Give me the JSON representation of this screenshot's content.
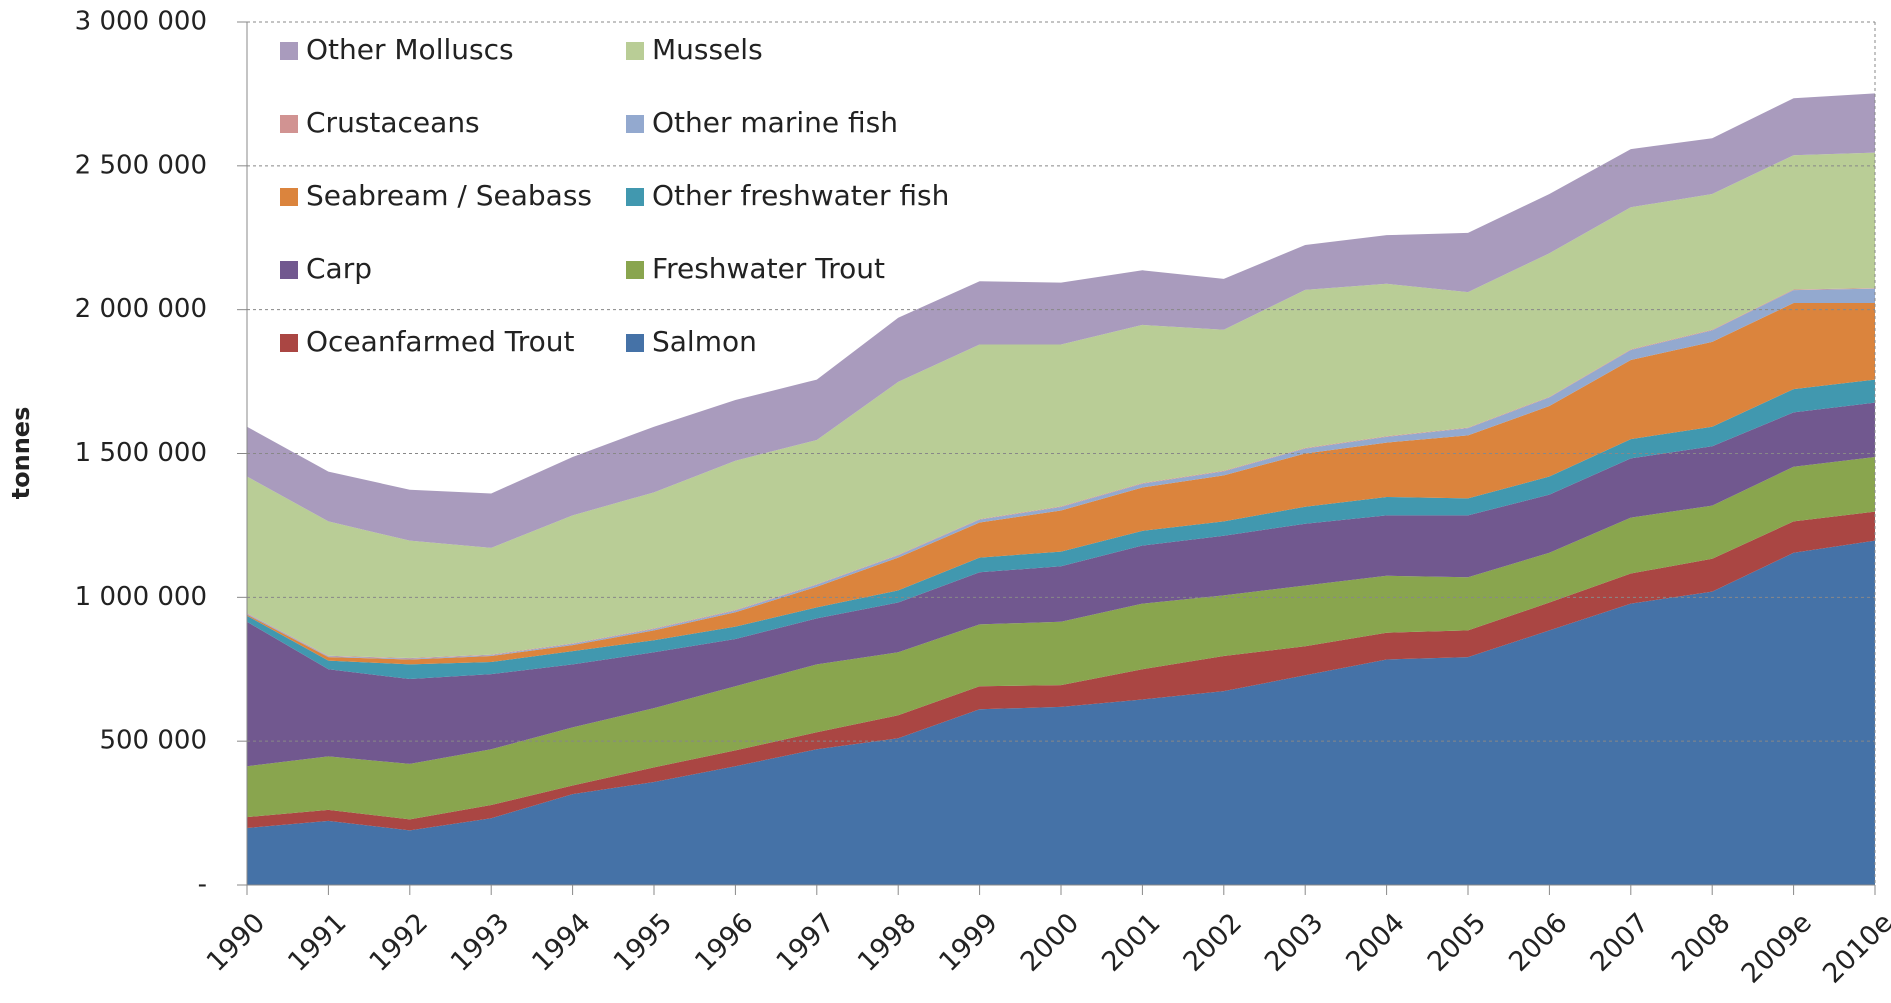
{
  "chart_data": {
    "type": "stacked_area",
    "y_label": "tonnes",
    "categories": [
      "1990",
      "1991",
      "1992",
      "1993",
      "1994",
      "1995",
      "1996",
      "1997",
      "1998",
      "1999",
      "2000",
      "2001",
      "2002",
      "2003",
      "2004",
      "2005",
      "2006",
      "2007",
      "2008",
      "2009e",
      "2010e"
    ],
    "ylim": [
      0,
      3000000
    ],
    "yticks": [
      {
        "value": 0,
        "label": "-"
      },
      {
        "value": 500000,
        "label": "500 000"
      },
      {
        "value": 1000000,
        "label": "1 000 000"
      },
      {
        "value": 1500000,
        "label": "1 500 000"
      },
      {
        "value": 2000000,
        "label": "2 000 000"
      },
      {
        "value": 2500000,
        "label": "2 500 000"
      },
      {
        "value": 3000000,
        "label": "3 000 000"
      }
    ],
    "grid": true,
    "series": [
      {
        "name": "Salmon",
        "color": "#4572a7",
        "values": [
          198000,
          223000,
          190000,
          232000,
          316000,
          358000,
          413000,
          472000,
          510000,
          611000,
          619000,
          645000,
          674000,
          729000,
          784000,
          792000,
          885000,
          978000,
          1020000,
          1155000,
          1197000
        ]
      },
      {
        "name": "Oceanfarmed Trout",
        "color": "#aa4643",
        "values": [
          38000,
          38000,
          38000,
          46000,
          30000,
          51000,
          55000,
          59000,
          80000,
          80000,
          76000,
          105000,
          122000,
          101000,
          93000,
          93000,
          97000,
          105000,
          114000,
          109000,
          101000
        ]
      },
      {
        "name": "Freshwater Trout",
        "color": "#89a54e",
        "values": [
          177000,
          186000,
          193000,
          194000,
          202000,
          206000,
          223000,
          236000,
          219000,
          215000,
          220000,
          228000,
          211000,
          211000,
          198000,
          185000,
          173000,
          194000,
          185000,
          190000,
          190000
        ]
      },
      {
        "name": "Carp",
        "color": "#71588f",
        "values": [
          502000,
          303000,
          295000,
          261000,
          219000,
          194000,
          164000,
          160000,
          173000,
          181000,
          193000,
          202000,
          207000,
          215000,
          210000,
          215000,
          202000,
          206000,
          206000,
          189000,
          189000
        ]
      },
      {
        "name": "Other freshwater fish",
        "color": "#4198af",
        "values": [
          21000,
          30000,
          51000,
          42000,
          46000,
          42000,
          43000,
          38000,
          42000,
          51000,
          51000,
          51000,
          50000,
          59000,
          64000,
          59000,
          63000,
          67000,
          68000,
          81000,
          80000
        ]
      },
      {
        "name": "Seabream / Seabass",
        "color": "#db843d",
        "values": [
          4000,
          12000,
          17000,
          21000,
          21000,
          34000,
          50000,
          72000,
          114000,
          122000,
          143000,
          151000,
          160000,
          185000,
          189000,
          219000,
          245000,
          275000,
          295000,
          299000,
          266000
        ]
      },
      {
        "name": "Other marine fish",
        "color": "#93a9cf",
        "values": [
          3000,
          3000,
          3000,
          3000,
          4000,
          5000,
          6000,
          7000,
          8000,
          10000,
          12000,
          13000,
          14000,
          17000,
          20000,
          25000,
          30000,
          35000,
          40000,
          45000,
          50000
        ]
      },
      {
        "name": "Crustaceans",
        "color": "#d19392",
        "values": [
          2000,
          2000,
          2000,
          2000,
          2000,
          2000,
          2000,
          2000,
          2000,
          2000,
          2000,
          2000,
          2000,
          2000,
          2000,
          2000,
          2000,
          2000,
          2000,
          2000,
          2000
        ]
      },
      {
        "name": "Mussels",
        "color": "#b9cd96",
        "values": [
          475000,
          467000,
          408000,
          371000,
          445000,
          473000,
          519000,
          501000,
          601000,
          607000,
          563000,
          550000,
          490000,
          550000,
          530000,
          471000,
          499000,
          494000,
          472000,
          467000,
          471000
        ]
      },
      {
        "name": "Other Molluscs",
        "color": "#a99bbd",
        "values": [
          173000,
          173000,
          177000,
          189000,
          203000,
          228000,
          211000,
          210000,
          223000,
          220000,
          215000,
          190000,
          177000,
          156000,
          169000,
          206000,
          206000,
          202000,
          194000,
          198000,
          206000
        ]
      }
    ]
  }
}
